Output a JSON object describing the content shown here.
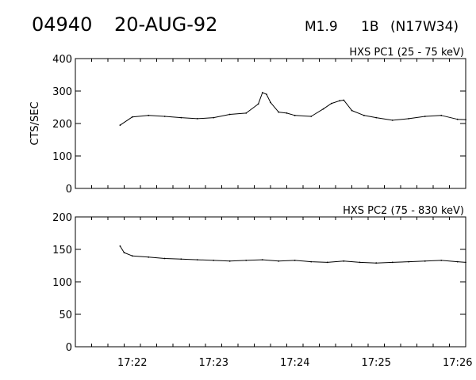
{
  "header": {
    "event_id": "04940",
    "date": "20-AUG-92",
    "goes_class": "M1.9",
    "optical_class": "1B",
    "location": "(N17W34)"
  },
  "chart_data": [
    {
      "type": "line",
      "title": "HXS PC1 (25 - 75 keV)",
      "ylabel": "CTS/SEC",
      "xlabel": "",
      "ylim": [
        0,
        400
      ],
      "yticks": [
        0,
        100,
        200,
        300,
        400
      ],
      "xlim": [
        21.3,
        26.1
      ],
      "xticks": [
        22,
        23,
        24,
        25,
        26
      ],
      "xtick_labels": [
        "",
        "",
        "",
        "",
        ""
      ],
      "grid": false,
      "series": [
        {
          "x": [
            21.85,
            22.0,
            22.2,
            22.4,
            22.6,
            22.8,
            23.0,
            23.2,
            23.4,
            23.55,
            23.6,
            23.65,
            23.7,
            23.8,
            23.9,
            24.0,
            24.2,
            24.35,
            24.45,
            24.55,
            24.6,
            24.7,
            24.85,
            25.0,
            25.2,
            25.4,
            25.6,
            25.8,
            26.0,
            26.1
          ],
          "y": [
            195,
            220,
            225,
            222,
            218,
            215,
            218,
            228,
            232,
            260,
            295,
            290,
            265,
            235,
            232,
            225,
            222,
            245,
            262,
            270,
            272,
            240,
            225,
            218,
            210,
            215,
            222,
            225,
            213,
            212
          ]
        }
      ]
    },
    {
      "type": "line",
      "title": "HXS PC2 (75 - 830 keV)",
      "ylabel": "",
      "xlabel": "",
      "ylim": [
        0,
        200
      ],
      "yticks": [
        0,
        50,
        100,
        150,
        200
      ],
      "xlim": [
        21.3,
        26.1
      ],
      "xticks": [
        22,
        23,
        24,
        25,
        26
      ],
      "xtick_labels": [
        "17:22",
        "17:23",
        "17:24",
        "17:25",
        "17:26"
      ],
      "grid": false,
      "series": [
        {
          "x": [
            21.85,
            21.9,
            22.0,
            22.2,
            22.4,
            22.6,
            22.8,
            23.0,
            23.2,
            23.4,
            23.6,
            23.8,
            24.0,
            24.2,
            24.4,
            24.6,
            24.8,
            25.0,
            25.2,
            25.4,
            25.6,
            25.8,
            26.0,
            26.1
          ],
          "y": [
            155,
            145,
            140,
            138,
            136,
            135,
            134,
            133,
            132,
            133,
            134,
            132,
            133,
            131,
            130,
            132,
            130,
            129,
            130,
            131,
            132,
            133,
            131,
            130
          ]
        }
      ]
    }
  ]
}
